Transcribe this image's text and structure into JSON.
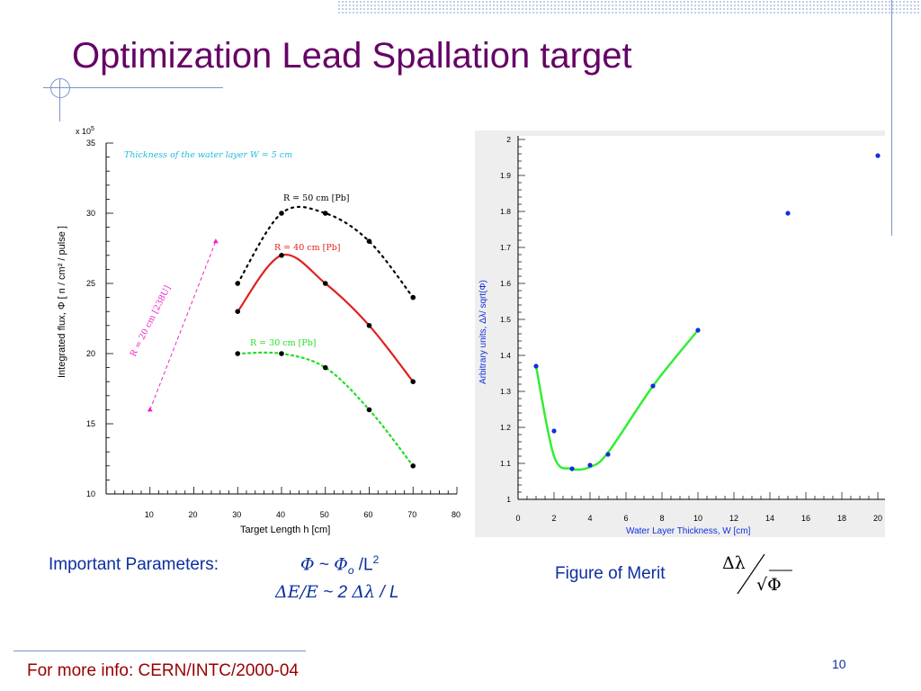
{
  "slide": {
    "title": "Optimization Lead Spallation target",
    "footer": "For more info: CERN/INTC/2000-04",
    "page_number": "10",
    "important_label": "Important Parameters:",
    "param1": {
      "phi": "Φ",
      "tilde": " ~ ",
      "phi_o": "Φ",
      "o": "o",
      "rest": " /L",
      "sup": "2"
    },
    "param2": {
      "de_e": "ΔE/E",
      "rest1": " ~ 2 ",
      "dl": "Δλ",
      "rest2": " / L"
    },
    "figure_of_merit": "Figure of Merit",
    "fom_numerator": "Δλ",
    "fom_denominator": "√Φ"
  },
  "colors": {
    "title": "#660066",
    "text_blue": "#0b2fa0",
    "footer_red": "#990000",
    "red_curve": "#e02020",
    "green_curve": "#22dd22",
    "magenta_line": "#ee22cc",
    "cyan_note": "#22bbdd",
    "fom_curve": "#33ee33",
    "fom_point": "#1030dd"
  },
  "chart_data": [
    {
      "type": "scatter",
      "scale_label": "x 10",
      "scale_exp": "5",
      "xlabel": "Target Length h [cm]",
      "ylabel": "Integrated flux,  Φ  [ n / cm² / pulse ]",
      "xlim": [
        0,
        80
      ],
      "ylim": [
        10,
        35
      ],
      "xticks": [
        10,
        20,
        30,
        40,
        50,
        60,
        70,
        80
      ],
      "yticks": [
        10,
        15,
        20,
        25,
        30,
        35
      ],
      "annotation": "Thickness of the water layer W = 5 cm",
      "series": [
        {
          "name": "R = 50 cm [Pb]",
          "style": "dotted-black",
          "x": [
            30,
            40,
            50,
            60,
            70
          ],
          "values": [
            25,
            30,
            30,
            28,
            24
          ]
        },
        {
          "name": "R = 40 cm [Pb]",
          "style": "solid-red",
          "x": [
            30,
            40,
            50,
            60,
            70
          ],
          "values": [
            23,
            27,
            25,
            22,
            18
          ]
        },
        {
          "name": "R = 30 cm [Pb]",
          "style": "dotted-green",
          "x": [
            30,
            40,
            50,
            60,
            70
          ],
          "values": [
            20,
            20,
            19,
            16,
            12
          ]
        },
        {
          "name": "R = 20 cm [238U]",
          "style": "dashed-magenta",
          "x": [
            10,
            25
          ],
          "values": [
            16,
            28
          ]
        }
      ]
    },
    {
      "type": "scatter",
      "xlabel": "Water Layer Thickness, W [cm]",
      "ylabel": "Arbitrary units,  Δλ/ sqrt(Φ)",
      "xlim": [
        0,
        20
      ],
      "ylim": [
        1,
        2
      ],
      "xticks": [
        0,
        2,
        4,
        6,
        8,
        10,
        12,
        14,
        16,
        18,
        20
      ],
      "yticks": [
        1,
        1.1,
        1.2,
        1.3,
        1.4,
        1.5,
        1.6,
        1.7,
        1.8,
        1.9,
        2
      ],
      "series": [
        {
          "name": "",
          "x": [
            1,
            2,
            3,
            4,
            5,
            7.5,
            10,
            15,
            20
          ],
          "values": [
            1.37,
            1.19,
            1.085,
            1.095,
            1.125,
            1.315,
            1.47,
            1.795,
            1.955
          ]
        }
      ]
    }
  ]
}
